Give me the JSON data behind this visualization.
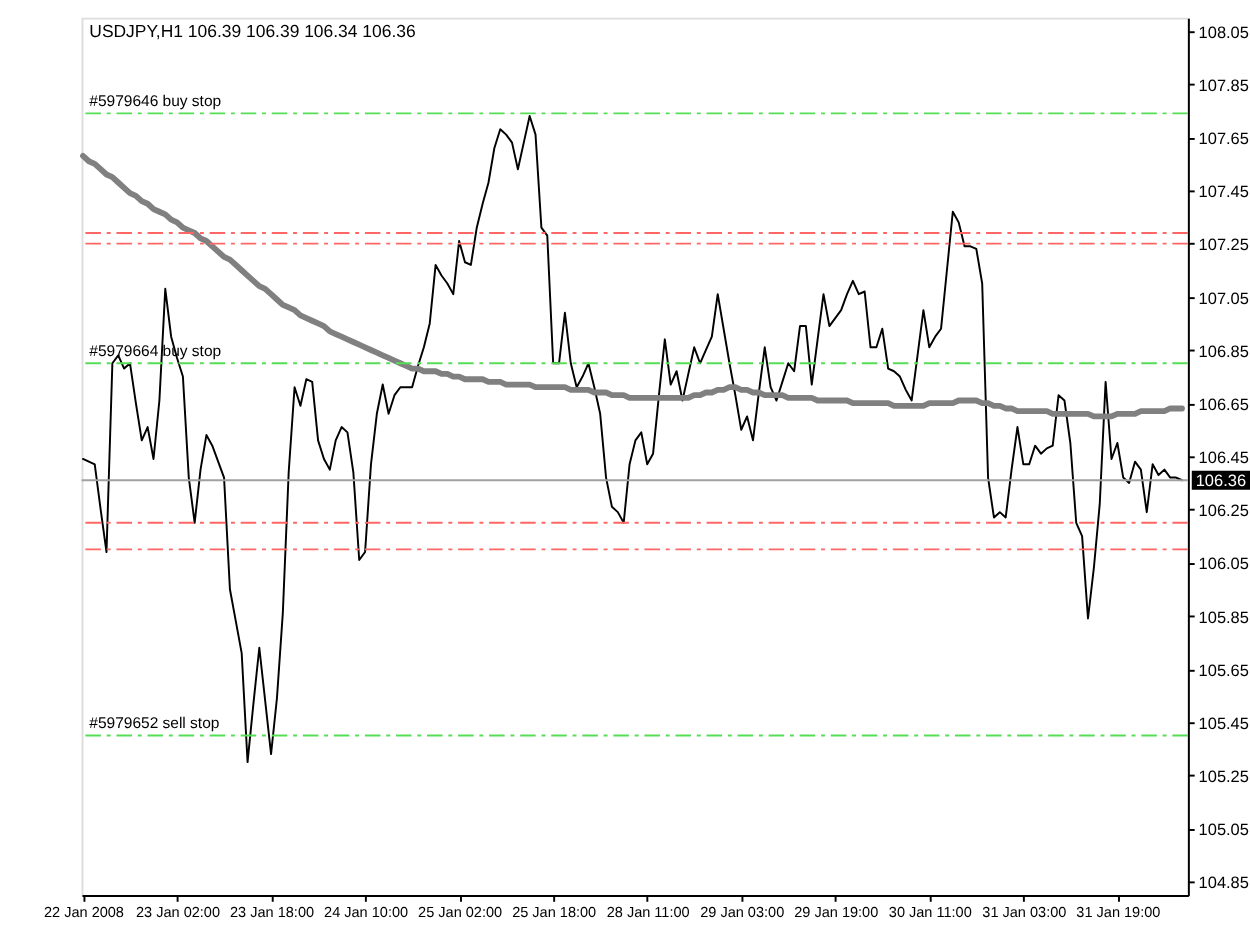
{
  "chart_data": {
    "type": "line",
    "title": "USDJPY,H1 106.39 106.39 106.34 106.36",
    "categories": [
      "22 Jan 2008",
      null,
      null,
      null,
      null,
      null,
      null,
      null,
      null,
      null,
      null,
      null,
      null,
      null,
      null,
      null,
      "23 Jan 02:00",
      null,
      null,
      null,
      null,
      null,
      null,
      null,
      null,
      null,
      null,
      null,
      null,
      null,
      null,
      null,
      "23 Jan 18:00",
      null,
      null,
      null,
      null,
      null,
      null,
      null,
      null,
      null,
      null,
      null,
      null,
      null,
      null,
      null,
      "24 Jan 10:00",
      null,
      null,
      null,
      null,
      null,
      null,
      null,
      null,
      null,
      null,
      null,
      null,
      null,
      null,
      null,
      "25 Jan 02:00",
      null,
      null,
      null,
      null,
      null,
      null,
      null,
      null,
      null,
      null,
      null,
      null,
      null,
      null,
      null,
      "25 Jan 18:00",
      null,
      null,
      null,
      null,
      null,
      null,
      null,
      null,
      null,
      null,
      null,
      null,
      null,
      null,
      null,
      "28 Jan 11:00",
      null,
      null,
      null,
      null,
      null,
      null,
      null,
      null,
      null,
      null,
      null,
      null,
      null,
      null,
      null,
      "29 Jan 03:00",
      null,
      null,
      null,
      null,
      null,
      null,
      null,
      null,
      null,
      null,
      null,
      null,
      null,
      null,
      null,
      "29 Jan 19:00",
      null,
      null,
      null,
      null,
      null,
      null,
      null,
      null,
      null,
      null,
      null,
      null,
      null,
      null,
      null,
      "30 Jan 11:00",
      null,
      null,
      null,
      null,
      null,
      null,
      null,
      null,
      null,
      null,
      null,
      null,
      null,
      null,
      null,
      "31 Jan 03:00",
      null,
      null,
      null,
      null,
      null,
      null,
      null,
      null,
      null,
      null,
      null,
      null,
      null,
      null,
      null,
      "31 Jan 19:00",
      null,
      null,
      null,
      null,
      null,
      null,
      null,
      null,
      null,
      null,
      null
    ],
    "ylim": [
      104.8,
      108.1
    ],
    "yticks": [
      104.85,
      105.05,
      105.25,
      105.45,
      105.65,
      105.85,
      106.05,
      106.25,
      106.45,
      106.65,
      106.85,
      107.05,
      107.25,
      107.45,
      107.65,
      107.85,
      108.05
    ],
    "series": [
      {
        "color": "#000000",
        "values": [
          106.44,
          106.43,
          106.42,
          106.25,
          106.09,
          106.8,
          106.83,
          106.78,
          106.8,
          106.65,
          106.51,
          106.56,
          106.44,
          106.66,
          107.08,
          106.9,
          106.82,
          106.75,
          106.37,
          106.2,
          106.4,
          106.53,
          106.49,
          106.43,
          106.37,
          105.95,
          105.83,
          105.71,
          105.3,
          105.52,
          105.73,
          105.53,
          105.33,
          105.54,
          105.86,
          106.39,
          106.71,
          106.64,
          106.74,
          106.73,
          106.51,
          106.44,
          106.4,
          106.51,
          106.56,
          106.54,
          106.39,
          106.06,
          106.09,
          106.42,
          106.61,
          106.72,
          106.61,
          106.68,
          106.71,
          106.71,
          106.71,
          106.79,
          106.86,
          106.95,
          107.17,
          107.13,
          107.1,
          107.06,
          107.26,
          107.18,
          107.17,
          107.31,
          107.4,
          107.48,
          107.61,
          107.68,
          107.66,
          107.63,
          107.53,
          107.63,
          107.73,
          107.66,
          107.31,
          107.28,
          106.8,
          106.8,
          106.99,
          106.8,
          106.71,
          106.75,
          106.8,
          106.71,
          106.61,
          106.37,
          106.26,
          106.24,
          106.2,
          106.42,
          106.51,
          106.54,
          106.42,
          106.46,
          106.68,
          106.89,
          106.72,
          106.77,
          106.66,
          106.76,
          106.86,
          106.8,
          106.85,
          106.9,
          107.06,
          106.93,
          106.8,
          106.68,
          106.55,
          106.6,
          106.51,
          106.69,
          106.86,
          106.71,
          106.66,
          106.73,
          106.8,
          106.77,
          106.94,
          106.94,
          106.72,
          106.89,
          107.06,
          106.94,
          106.97,
          107.0,
          107.06,
          107.11,
          107.06,
          107.07,
          106.86,
          106.86,
          106.93,
          106.78,
          106.77,
          106.75,
          106.7,
          106.66,
          106.83,
          107.0,
          106.86,
          106.9,
          106.93,
          107.15,
          107.37,
          107.33,
          107.24,
          107.24,
          107.23,
          107.1,
          106.37,
          106.22,
          106.24,
          106.22,
          106.4,
          106.56,
          106.42,
          106.42,
          106.49,
          106.46,
          106.48,
          106.49,
          106.68,
          106.66,
          106.5,
          106.2,
          106.15,
          105.84,
          106.03,
          106.27,
          106.73,
          106.44,
          106.5,
          106.37,
          106.35,
          106.43,
          106.4,
          106.24,
          106.42,
          106.38,
          106.4,
          106.37,
          106.37,
          106.36
        ]
      },
      {
        "color": "#808080",
        "values": [
          107.58,
          107.56,
          107.55,
          107.53,
          107.51,
          107.5,
          107.48,
          107.46,
          107.44,
          107.43,
          107.41,
          107.4,
          107.38,
          107.37,
          107.36,
          107.34,
          107.33,
          107.31,
          107.3,
          107.29,
          107.27,
          107.26,
          107.24,
          107.22,
          107.2,
          107.19,
          107.17,
          107.15,
          107.13,
          107.11,
          107.09,
          107.08,
          107.06,
          107.04,
          107.02,
          107.01,
          107.0,
          106.98,
          106.97,
          106.96,
          106.95,
          106.94,
          106.92,
          106.91,
          106.9,
          106.89,
          106.88,
          106.87,
          106.86,
          106.85,
          106.84,
          106.83,
          106.82,
          106.81,
          106.8,
          106.79,
          106.78,
          106.78,
          106.77,
          106.77,
          106.77,
          106.76,
          106.76,
          106.75,
          106.75,
          106.74,
          106.74,
          106.74,
          106.74,
          106.73,
          106.73,
          106.73,
          106.72,
          106.72,
          106.72,
          106.72,
          106.72,
          106.71,
          106.71,
          106.71,
          106.71,
          106.71,
          106.71,
          106.7,
          106.7,
          106.7,
          106.7,
          106.69,
          106.69,
          106.69,
          106.68,
          106.68,
          106.68,
          106.67,
          106.67,
          106.67,
          106.67,
          106.67,
          106.67,
          106.67,
          106.67,
          106.67,
          106.67,
          106.67,
          106.68,
          106.68,
          106.69,
          106.69,
          106.7,
          106.7,
          106.71,
          106.71,
          106.7,
          106.7,
          106.69,
          106.69,
          106.68,
          106.68,
          106.68,
          106.68,
          106.67,
          106.67,
          106.67,
          106.67,
          106.67,
          106.66,
          106.66,
          106.66,
          106.66,
          106.66,
          106.66,
          106.65,
          106.65,
          106.65,
          106.65,
          106.65,
          106.65,
          106.65,
          106.64,
          106.64,
          106.64,
          106.64,
          106.64,
          106.64,
          106.65,
          106.65,
          106.65,
          106.65,
          106.65,
          106.66,
          106.66,
          106.66,
          106.66,
          106.65,
          106.65,
          106.64,
          106.64,
          106.63,
          106.63,
          106.62,
          106.62,
          106.62,
          106.62,
          106.62,
          106.62,
          106.61,
          106.61,
          106.61,
          106.61,
          106.61,
          106.61,
          106.61,
          106.6,
          106.6,
          106.6,
          106.6,
          106.61,
          106.61,
          106.61,
          106.61,
          106.62,
          106.62,
          106.62,
          106.62,
          106.62,
          106.63,
          106.63,
          106.63
        ]
      }
    ],
    "ref_lines": [
      {
        "axis": "y",
        "value": 107.74,
        "label": "#5979646 buy stop",
        "color": "#55dd55",
        "line_style": "dashed"
      },
      {
        "axis": "y",
        "value": 107.29,
        "color": "#ff6666",
        "line_style": "dashed"
      },
      {
        "axis": "y",
        "value": 107.25,
        "color": "#ff6666",
        "line_style": "dashed"
      },
      {
        "axis": "y",
        "value": 106.8,
        "label": "#5979664 buy stop",
        "color": "#55dd55",
        "line_style": "dashed"
      },
      {
        "axis": "y",
        "value": 106.36,
        "label": "106.36",
        "color": "#a0a0a0",
        "line_style": "solid"
      },
      {
        "axis": "y",
        "value": 106.2,
        "color": "#ff6666",
        "line_style": "dashed"
      },
      {
        "axis": "y",
        "value": 106.1,
        "color": "#ff6666",
        "line_style": "dashed"
      },
      {
        "axis": "y",
        "value": 105.4,
        "label": "#5979652 sell stop",
        "color": "#55dd55",
        "line_style": "dashed"
      }
    ]
  }
}
